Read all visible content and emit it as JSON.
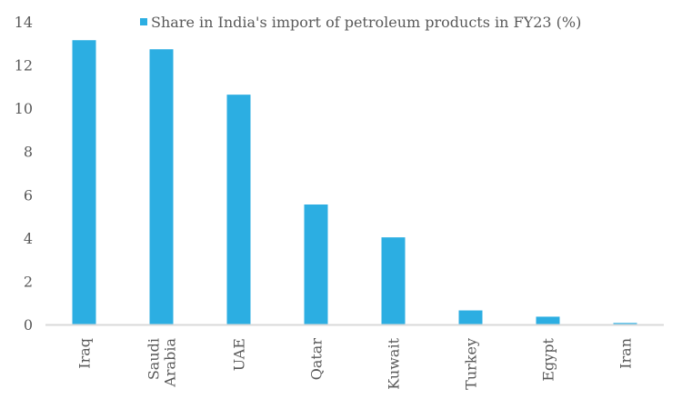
{
  "chart_data": {
    "type": "bar",
    "title": "",
    "legend": {
      "label": "Share in India's import of petroleum products in FY23 (%)",
      "placement": "top"
    },
    "categories": [
      "Iraq",
      "Saudi Arabia",
      "UAE",
      "Qatar",
      "Kuwait",
      "Turkey",
      "Egypt",
      "Iran"
    ],
    "category_lines": [
      [
        "Iraq"
      ],
      [
        "Saudi",
        "Arabia"
      ],
      [
        "UAE"
      ],
      [
        "Qatar"
      ],
      [
        "Kuwait"
      ],
      [
        "Turkey"
      ],
      [
        "Egypt"
      ],
      [
        "Iran"
      ]
    ],
    "series": [
      {
        "name": "Share in India's import of petroleum products in FY23 (%)",
        "values": [
          13.15,
          12.73,
          10.63,
          5.55,
          4.03,
          0.65,
          0.36,
          0.07
        ]
      }
    ],
    "xlabel": "",
    "ylabel": "",
    "ylim": [
      0,
      14
    ],
    "yticks": [
      "0",
      "2",
      "4",
      "6",
      "8",
      "10",
      "12",
      "14"
    ],
    "grid": false,
    "color": "#2CAEE2"
  }
}
